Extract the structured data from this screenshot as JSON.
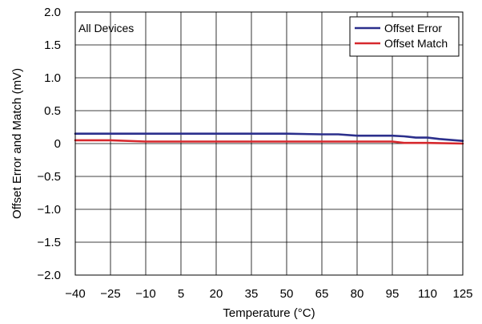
{
  "chart_data": {
    "type": "line",
    "xlabel": "Temperature (°C)",
    "ylabel": "Offset Error and Match (mV)",
    "xlim": [
      -40,
      125
    ],
    "ylim": [
      -2.0,
      2.0
    ],
    "x_ticks": [
      -40,
      -25,
      -10,
      5,
      20,
      35,
      50,
      65,
      80,
      95,
      110,
      125
    ],
    "x_tick_labels": [
      "−40",
      "−25",
      "−10",
      "5",
      "20",
      "35",
      "50",
      "65",
      "80",
      "95",
      "110",
      "125"
    ],
    "y_ticks": [
      2.0,
      1.5,
      1.0,
      0.5,
      0,
      -0.5,
      -1.0,
      -1.5,
      -2.0
    ],
    "y_tick_labels": [
      "2.0",
      "1.5",
      "1.0",
      "0.5",
      "0",
      "−0.5",
      "−1.0",
      "−1.5",
      "−2.0"
    ],
    "grid": true,
    "annotation": "All Devices",
    "legend_position": "top-right",
    "series": [
      {
        "name": "Offset Error",
        "color": "#2b2f8c",
        "x": [
          -40,
          -25,
          -10,
          5,
          20,
          35,
          50,
          65,
          72,
          80,
          95,
          100,
          105,
          110,
          115,
          125
        ],
        "y": [
          0.15,
          0.15,
          0.15,
          0.15,
          0.15,
          0.15,
          0.15,
          0.14,
          0.14,
          0.12,
          0.12,
          0.11,
          0.09,
          0.09,
          0.07,
          0.04
        ]
      },
      {
        "name": "Offset Match",
        "color": "#d6282d",
        "x": [
          -40,
          -25,
          -10,
          5,
          20,
          35,
          50,
          65,
          80,
          95,
          100,
          110,
          125
        ],
        "y": [
          0.05,
          0.05,
          0.03,
          0.03,
          0.03,
          0.03,
          0.03,
          0.03,
          0.03,
          0.03,
          0.01,
          0.01,
          0.0
        ]
      }
    ]
  }
}
